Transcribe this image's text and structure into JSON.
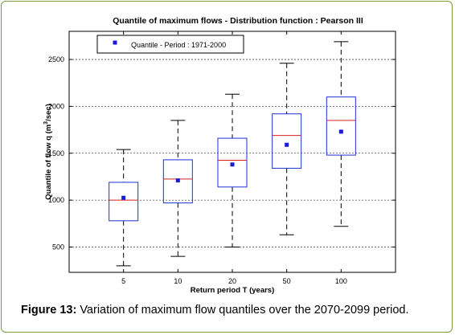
{
  "chart_data": {
    "type": "boxplot",
    "title": "Quantile of maximum flows - Distribution function : Pearson III",
    "xlabel": "Return period T (years)",
    "ylabel_main": "Quantile of flow q (m",
    "ylabel_sup": "3",
    "ylabel_tail": "/sec)",
    "categories": [
      "5",
      "10",
      "20",
      "50",
      "100"
    ],
    "yticks": [
      500,
      1000,
      1500,
      2000,
      2500
    ],
    "ylim": [
      230,
      2800
    ],
    "grid": "horizontal dashed",
    "legend_position": "top-left",
    "legend": {
      "label": "Quantile - Period : 1971-2000",
      "color": "#1a1adb"
    },
    "boxes": [
      {
        "whisker_low": 300,
        "q1": 780,
        "median": 1000,
        "q3": 1190,
        "whisker_high": 1540,
        "quantile_1971_2000": 1025
      },
      {
        "whisker_low": 400,
        "q1": 970,
        "median": 1225,
        "q3": 1430,
        "whisker_high": 1850,
        "quantile_1971_2000": 1210
      },
      {
        "whisker_low": 500,
        "q1": 1140,
        "median": 1425,
        "q3": 1660,
        "whisker_high": 2130,
        "quantile_1971_2000": 1380
      },
      {
        "whisker_low": 630,
        "q1": 1340,
        "median": 1690,
        "q3": 1920,
        "whisker_high": 2460,
        "quantile_1971_2000": 1590
      },
      {
        "whisker_low": 720,
        "q1": 1480,
        "median": 1850,
        "q3": 2100,
        "whisker_high": 2690,
        "quantile_1971_2000": 1730
      }
    ],
    "colors": {
      "box": "#1f2fd6",
      "median": "#d62020",
      "whisker": "#000000",
      "marker": "#1a1adb"
    }
  },
  "caption": {
    "label": "Figure 13:",
    "text": " Variation of maximum flow quantiles over the 2070-2099 period."
  }
}
